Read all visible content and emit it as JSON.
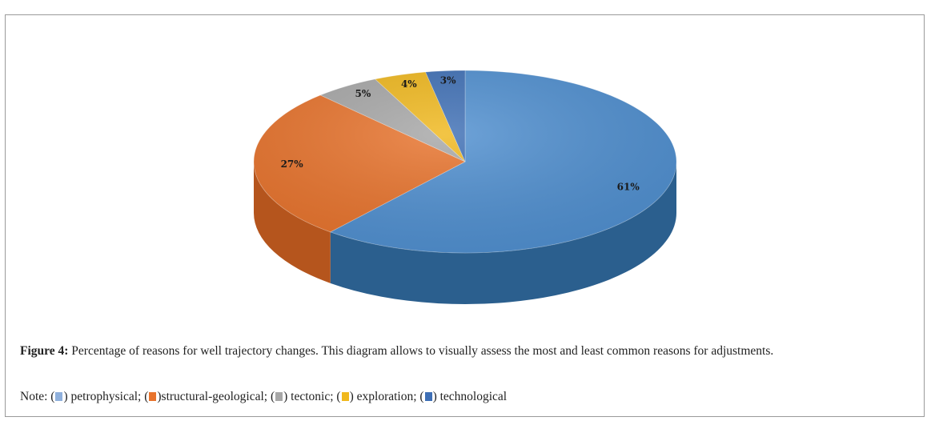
{
  "chart_data": {
    "type": "pie",
    "categories": [
      "petrophysical",
      "structural-geological",
      "tectonic",
      "exploration",
      "technological"
    ],
    "values": [
      61,
      27,
      5,
      4,
      3
    ],
    "data_labels": [
      "61%",
      "27%",
      "5%",
      "4%",
      "3%"
    ],
    "colors": [
      "#4f8fd0",
      "#e8732c",
      "#a7a7a7",
      "#f0b81d",
      "#3e6fb5"
    ],
    "side_colors": [
      "#2b5f8e",
      "#b5551d",
      "#7f7f7f",
      "#b88a10",
      "#2a4f86"
    ],
    "style": "3d",
    "legend": "in caption below chart"
  },
  "caption": {
    "label": "Figure 4:",
    "text": " Percentage of reasons for well trajectory changes. This diagram allows to visually assess the most and least common reasons for adjustments."
  },
  "note": {
    "prefix": "Note: (",
    "items": [
      {
        "color": "#8fb0dc",
        "text": ") petrophysical; ("
      },
      {
        "color": "#e8732c",
        "text": ")structural-geological; ("
      },
      {
        "color": "#a7a7a7",
        "text": ") tectonic; ("
      },
      {
        "color": "#f0b81d",
        "text": ") exploration; ("
      },
      {
        "color": "#3e6fb5",
        "text": ") technological"
      }
    ]
  }
}
